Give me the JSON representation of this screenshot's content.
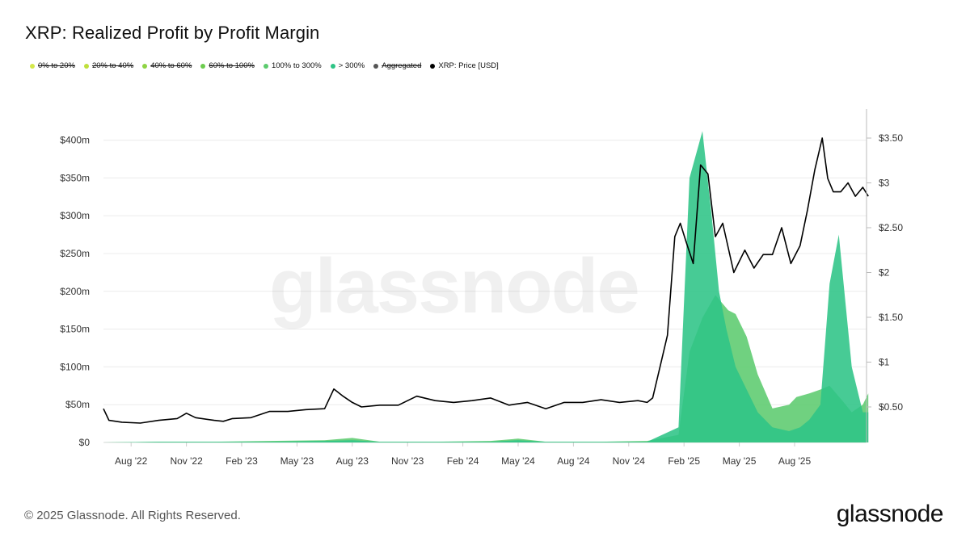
{
  "title": "XRP: Realized Profit by Profit Margin",
  "legend": [
    {
      "label": "0% to 20%",
      "color": "#d4e84a",
      "enabled": false
    },
    {
      "label": "20% to 40%",
      "color": "#bfe03c",
      "enabled": false
    },
    {
      "label": "40% to 60%",
      "color": "#8fd444",
      "enabled": false
    },
    {
      "label": "60% to 100%",
      "color": "#6ccc4e",
      "enabled": false
    },
    {
      "label": "100% to 300%",
      "color": "#5ccb6e",
      "enabled": true
    },
    {
      "label": "> 300%",
      "color": "#2ec486",
      "enabled": true
    },
    {
      "label": "Aggregated",
      "color": "#555555",
      "enabled": false
    },
    {
      "label": "XRP: Price [USD]",
      "color": "#000000",
      "enabled": true
    }
  ],
  "watermark": "glassnode",
  "footer": {
    "copyright": "© 2025 Glassnode. All Rights Reserved.",
    "logo": "glassnode"
  },
  "chart_data": {
    "type": "area",
    "x_ticks": [
      "Aug '22",
      "Nov '22",
      "Feb '23",
      "May '23",
      "Aug '23",
      "Nov '23",
      "Feb '24",
      "May '24",
      "Aug '24",
      "Nov '24",
      "Feb '25",
      "May '25",
      "Aug '25"
    ],
    "y_left_ticks": [
      "$0",
      "$50m",
      "$100m",
      "$150m",
      "$200m",
      "$250m",
      "$300m",
      "$350m",
      "$400m"
    ],
    "y_left_range": [
      0,
      400
    ],
    "y_right_ticks": [
      "$0.50",
      "$1",
      "$1.50",
      "$2",
      "$2.50",
      "$3",
      "$3.50"
    ],
    "y_right_range": [
      0,
      3.5
    ],
    "grid": true,
    "legend_position": "top-left",
    "x_range_months": [
      0,
      41.5
    ],
    "series": [
      {
        "name": "100% to 300%",
        "color": "#5ccb6e",
        "axis": "left",
        "unit": "million USD",
        "x": [
          0,
          3,
          6,
          9,
          12,
          13.5,
          15,
          18,
          21,
          22.5,
          24,
          27,
          29.5,
          31.2,
          31.8,
          32.5,
          33.2,
          33.9,
          34.3,
          34.9,
          35.5,
          36.3,
          37.2,
          37.6,
          38.3,
          38.9,
          39.4,
          40.1,
          40.6,
          41.2,
          41.5
        ],
        "values": [
          0,
          1,
          1,
          2,
          3,
          6,
          1,
          1,
          2,
          5,
          1,
          1,
          2,
          10,
          120,
          165,
          195,
          175,
          170,
          140,
          90,
          45,
          50,
          60,
          65,
          70,
          75,
          55,
          40,
          50,
          65
        ]
      },
      {
        "name": "> 300%",
        "color": "#2ec486",
        "axis": "left",
        "unit": "million USD",
        "x": [
          0,
          3,
          6,
          9,
          12,
          13.5,
          15,
          18,
          21,
          22.5,
          24,
          27,
          29.5,
          31.2,
          31.8,
          32.5,
          33.0,
          33.4,
          33.8,
          34.3,
          34.9,
          35.5,
          36.3,
          37.2,
          37.8,
          38.3,
          38.9,
          39.4,
          39.9,
          40.6,
          41.2,
          41.5
        ],
        "values": [
          0,
          1,
          1,
          1,
          2,
          3,
          1,
          1,
          1,
          3,
          1,
          1,
          1,
          20,
          350,
          412,
          300,
          200,
          150,
          100,
          70,
          40,
          20,
          15,
          20,
          30,
          50,
          210,
          275,
          100,
          40,
          40
        ]
      },
      {
        "name": "XRP: Price [USD]",
        "color": "#000000",
        "axis": "right",
        "unit": "USD",
        "x": [
          0,
          0.3,
          1,
          2,
          3,
          4,
          4.5,
          5,
          6,
          6.5,
          7,
          8,
          9,
          10,
          11,
          12,
          12.5,
          13,
          13.5,
          14,
          15,
          16,
          17,
          18,
          19,
          20,
          21,
          22,
          23,
          24,
          25,
          26,
          27,
          28,
          29,
          29.5,
          29.8,
          30.2,
          30.6,
          31,
          31.3,
          31.6,
          32,
          32.4,
          32.8,
          33.2,
          33.6,
          34.2,
          34.8,
          35.3,
          35.8,
          36.3,
          36.8,
          37.3,
          37.8,
          38.2,
          38.6,
          39,
          39.3,
          39.6,
          40,
          40.4,
          40.8,
          41.2,
          41.5
        ],
        "values": [
          0.48,
          0.35,
          0.33,
          0.32,
          0.35,
          0.37,
          0.43,
          0.38,
          0.35,
          0.34,
          0.37,
          0.38,
          0.45,
          0.45,
          0.47,
          0.48,
          0.7,
          0.62,
          0.55,
          0.5,
          0.52,
          0.52,
          0.62,
          0.57,
          0.55,
          0.57,
          0.6,
          0.52,
          0.55,
          0.48,
          0.55,
          0.55,
          0.58,
          0.55,
          0.57,
          0.55,
          0.6,
          0.95,
          1.3,
          2.4,
          2.55,
          2.35,
          2.1,
          3.2,
          3.1,
          2.4,
          2.55,
          2.0,
          2.25,
          2.05,
          2.2,
          2.2,
          2.5,
          2.1,
          2.3,
          2.7,
          3.15,
          3.5,
          3.05,
          2.9,
          2.9,
          3.0,
          2.85,
          2.95,
          2.85
        ]
      }
    ]
  }
}
